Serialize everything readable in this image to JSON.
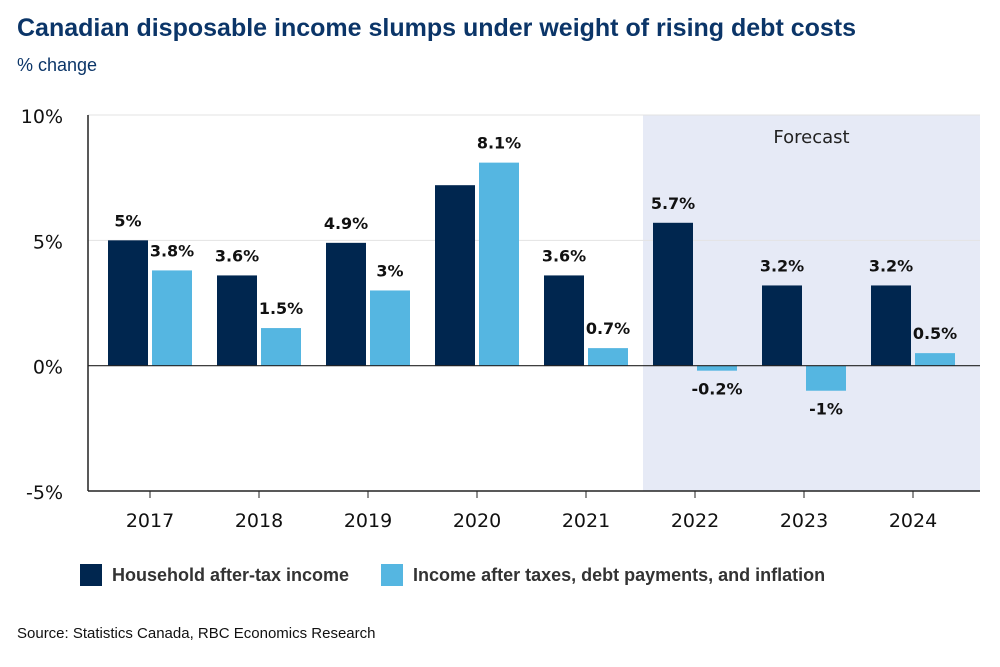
{
  "title": "Canadian disposable income slumps under weight of rising debt costs",
  "subtitle": "% change",
  "source": "Source: Statistics Canada, RBC Economics Research",
  "colors": {
    "household": "#00264f",
    "after_debt": "#55b6e1",
    "forecast_bg": "#e6eaf6",
    "title": "#0b3568"
  },
  "chart_data": {
    "type": "bar",
    "categories": [
      "2017",
      "2018",
      "2019",
      "2020",
      "2021",
      "2022",
      "2023",
      "2024"
    ],
    "series": [
      {
        "name": "Household after-tax income",
        "values": [
          5,
          3.6,
          4.9,
          7.2,
          3.6,
          5.7,
          3.2,
          3.2
        ],
        "labels": [
          "5%",
          "3.6%",
          "4.9%",
          null,
          "3.6%",
          "5.7%",
          "3.2%",
          "3.2%"
        ]
      },
      {
        "name": "Income after taxes, debt payments, and inflation",
        "values": [
          3.8,
          1.5,
          3,
          8.1,
          0.7,
          -0.2,
          -1,
          0.5
        ],
        "labels": [
          "3.8%",
          "1.5%",
          "3%",
          "8.1%",
          "0.7%",
          "-0.2%",
          "-1%",
          "0.5%"
        ]
      }
    ],
    "ylim": [
      -5,
      10
    ],
    "yticks": [
      -5,
      0,
      5,
      10
    ],
    "ytick_labels": [
      "-5%",
      "0%",
      "5%",
      "10%"
    ],
    "forecast_label": "Forecast",
    "forecast_start": "2022",
    "legend_position": "bottom",
    "grid": true
  }
}
